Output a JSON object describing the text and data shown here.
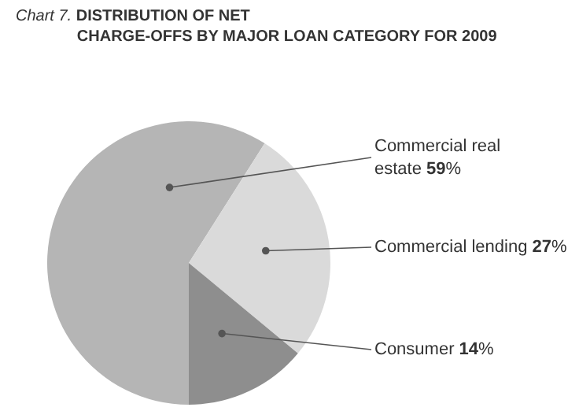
{
  "chart_data": {
    "type": "pie",
    "title": "Chart 7. DISTRIBUTION OF NET CHARGE-OFFS BY MAJOR LOAN CATEGORY FOR 2009",
    "categories": [
      "Commercial real estate",
      "Commercial lending",
      "Consumer"
    ],
    "values": [
      59,
      27,
      14
    ],
    "value_labels": [
      "59%",
      "27%",
      "14%"
    ],
    "colors": [
      "#b5b5b5",
      "#dadada",
      "#8e8e8e"
    ],
    "legend": false
  }
}
